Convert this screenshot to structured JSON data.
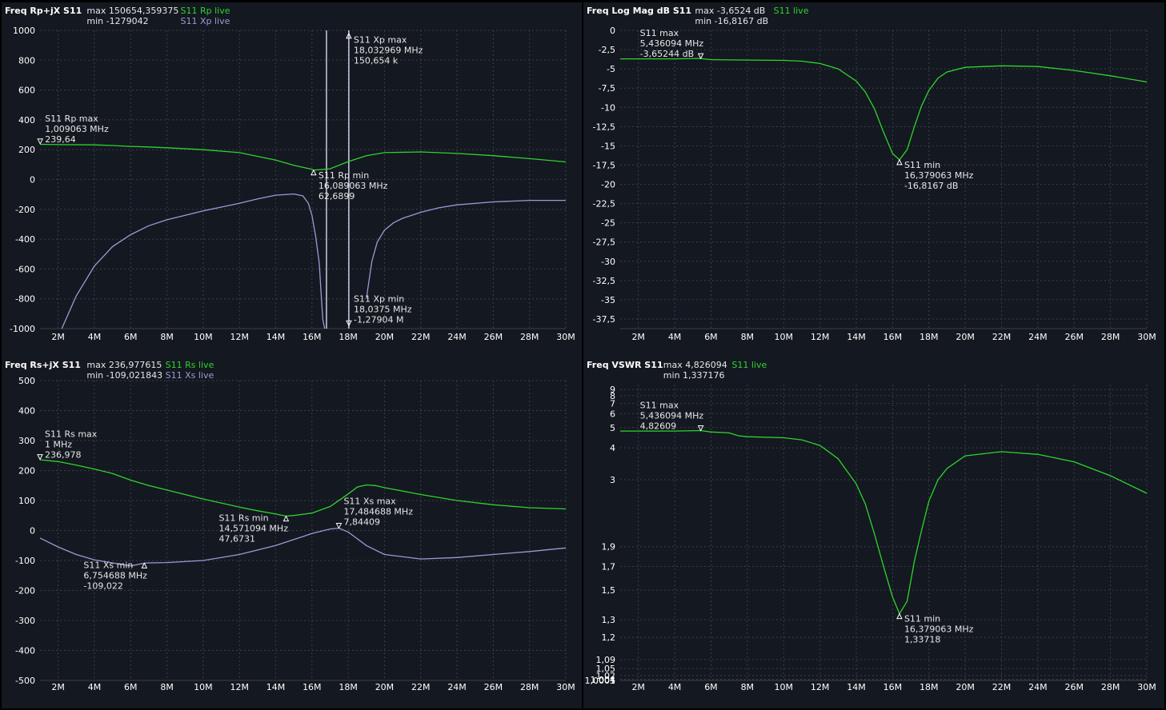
{
  "chart_data": [
    {
      "type": "line",
      "title": "Freq Rp+jX S11",
      "stats": {
        "max": "max 150654,359375",
        "min": "min -1279042"
      },
      "legend": [
        "S11 Rp live",
        "S11 Xp live"
      ],
      "x_ticks": [
        "2M",
        "4M",
        "6M",
        "8M",
        "10M",
        "12M",
        "14M",
        "16M",
        "18M",
        "20M",
        "22M",
        "24M",
        "26M",
        "28M",
        "30M"
      ],
      "y_ticks": [
        "1000",
        "800",
        "600",
        "400",
        "200",
        "0",
        "-200",
        "-400",
        "-600",
        "-800",
        "-1000"
      ],
      "xlim": [
        1,
        30
      ],
      "ylim": [
        -1000,
        1000
      ],
      "series": [
        {
          "name": "S11 Rp live",
          "color": "#2ed42e",
          "x": [
            1,
            2,
            4,
            5,
            6,
            7,
            8,
            10,
            12,
            14,
            15,
            16,
            16.09,
            17,
            18,
            19,
            20,
            22,
            24,
            26,
            28,
            30
          ],
          "y": [
            236,
            234,
            232,
            228,
            222,
            218,
            213,
            200,
            180,
            130,
            95,
            68,
            63,
            72,
            120,
            160,
            180,
            185,
            175,
            160,
            140,
            118
          ]
        },
        {
          "name": "S11 Xp live",
          "color": "#9b9bd6",
          "x": [
            2.2,
            3,
            4,
            5,
            6,
            7,
            8,
            10,
            12,
            13,
            14,
            15,
            15.5,
            15.8,
            16,
            16.2,
            16.4,
            16.5,
            16.6,
            16.7
          ],
          "y": [
            -1000,
            -780,
            -580,
            -450,
            -370,
            -310,
            -270,
            -210,
            -160,
            -130,
            -105,
            -97,
            -110,
            -160,
            -240,
            -380,
            -560,
            -760,
            -940,
            -1000
          ]
        },
        {
          "name": "S11 Xp live",
          "color": "#9b9bd6",
          "x": [
            19,
            19.3,
            19.6,
            20,
            20.5,
            21,
            22,
            23,
            24,
            26,
            28,
            30
          ],
          "y": [
            -800,
            -550,
            -420,
            -340,
            -290,
            -260,
            -220,
            -190,
            -170,
            -150,
            -140,
            -140
          ]
        }
      ],
      "markers": [
        {
          "x": 1.009063,
          "y": 239.64,
          "dir": "down",
          "lines": [
            "S11 Rp max",
            "1,009063 MHz",
            "239,64"
          ],
          "tdx": 6,
          "tdy": -28
        },
        {
          "x": 16.089063,
          "y": 62.6899,
          "dir": "up",
          "lines": [
            "S11 Rp min",
            "16,089063 MHz",
            "62,6899"
          ],
          "tdx": 6,
          "tdy": 10
        },
        {
          "x": 18.032969,
          "y": 980,
          "dir": "up",
          "lines": [
            "S11 Xp max",
            "18,032969 MHz",
            "150,654 k"
          ],
          "tdx": 6,
          "tdy": 12
        },
        {
          "x": 18.0375,
          "y": -980,
          "dir": "down",
          "lines": [
            "S11 Xp min",
            "18,0375 MHz",
            "-1,27904 M"
          ],
          "tdx": 6,
          "tdy": -30
        }
      ],
      "vlines": [
        16.8,
        18.032969
      ]
    },
    {
      "type": "line",
      "title": "Freq Log Mag dB S11",
      "stats": {
        "max": "max -3,6524 dB",
        "min": "min -16,8167 dB"
      },
      "legend": [
        "S11 live"
      ],
      "x_ticks": [
        "2M",
        "4M",
        "6M",
        "8M",
        "10M",
        "12M",
        "14M",
        "16M",
        "18M",
        "20M",
        "22M",
        "24M",
        "26M",
        "28M",
        "30M"
      ],
      "y_ticks": [
        "0",
        "-2,5",
        "-5",
        "-7,5",
        "-10",
        "-12,5",
        "-15",
        "-17,5",
        "-20",
        "-22,5",
        "-25",
        "-27,5",
        "-30",
        "-32,5",
        "-35",
        "-37,5"
      ],
      "xlim": [
        1,
        30
      ],
      "ylim": [
        -38.75,
        0
      ],
      "series": [
        {
          "name": "S11 live",
          "color": "#2ed42e",
          "x": [
            1,
            2,
            4,
            5.4,
            6,
            8,
            10,
            11,
            12,
            13,
            14,
            14.5,
            15,
            15.5,
            16,
            16.38,
            16.8,
            17.2,
            17.6,
            18,
            18.5,
            19,
            20,
            22,
            24,
            26,
            28,
            30
          ],
          "y": [
            -3.7,
            -3.7,
            -3.7,
            -3.65,
            -3.8,
            -3.85,
            -3.9,
            -4.0,
            -4.3,
            -5.0,
            -6.6,
            -8.0,
            -10.2,
            -13.2,
            -16.0,
            -16.82,
            -15.5,
            -12.5,
            -9.8,
            -7.8,
            -6.2,
            -5.4,
            -4.8,
            -4.6,
            -4.7,
            -5.2,
            -5.9,
            -6.7
          ]
        }
      ],
      "markers": [
        {
          "x": 5.436094,
          "y": -3.65244,
          "dir": "down",
          "lines": [
            "S11 max",
            "5,436094 MHz",
            "-3,65244 dB"
          ],
          "tdx": -76,
          "tdy": -28
        },
        {
          "x": 16.379063,
          "y": -16.8167,
          "dir": "up",
          "lines": [
            "S11 min",
            "16,379063 MHz",
            "-16,8167 dB"
          ],
          "tdx": 6,
          "tdy": 10
        }
      ],
      "vlines": []
    },
    {
      "type": "line",
      "title": "Freq Rs+jX S11",
      "stats": {
        "max": "max 236,977615",
        "min": "min -109,021843"
      },
      "legend": [
        "S11 Rs live",
        "S11 Xs live"
      ],
      "x_ticks": [
        "2M",
        "4M",
        "6M",
        "8M",
        "10M",
        "12M",
        "14M",
        "16M",
        "18M",
        "20M",
        "22M",
        "24M",
        "26M",
        "28M",
        "30M"
      ],
      "y_ticks": [
        "500",
        "400",
        "300",
        "200",
        "100",
        "0",
        "-100",
        "-200",
        "-300",
        "-400",
        "-500"
      ],
      "xlim": [
        1,
        30
      ],
      "ylim": [
        -500,
        500
      ],
      "series": [
        {
          "name": "S11 Rs live",
          "color": "#2ed42e",
          "x": [
            1,
            2,
            3,
            4,
            5,
            6,
            7,
            8,
            10,
            12,
            13,
            14,
            14.57,
            15,
            16,
            17,
            18,
            18.5,
            19,
            19.5,
            20,
            22,
            24,
            26,
            28,
            30
          ],
          "y": [
            236,
            230,
            218,
            205,
            190,
            168,
            150,
            135,
            105,
            78,
            66,
            55,
            48,
            50,
            58,
            80,
            122,
            145,
            152,
            150,
            143,
            120,
            100,
            86,
            76,
            72
          ]
        },
        {
          "name": "S11 Xs live",
          "color": "#9b9bd6",
          "x": [
            1,
            2,
            3,
            4,
            5,
            6,
            6.75,
            7,
            8,
            10,
            12,
            14,
            15,
            16,
            17,
            17.48,
            18,
            19,
            20,
            22,
            24,
            26,
            28,
            30
          ],
          "y": [
            -25,
            -55,
            -80,
            -98,
            -108,
            -118,
            -109,
            -108,
            -107,
            -100,
            -80,
            -50,
            -30,
            -10,
            5,
            8,
            -5,
            -50,
            -80,
            -95,
            -90,
            -80,
            -70,
            -58
          ]
        }
      ],
      "markers": [
        {
          "x": 1.0,
          "y": 236.978,
          "dir": "down",
          "lines": [
            "S11 Rs max",
            "1 MHz",
            "236,978"
          ],
          "tdx": 6,
          "tdy": -28
        },
        {
          "x": 14.571094,
          "y": 47.6731,
          "dir": "up",
          "lines": [
            "S11 Rs min",
            "14,571094 MHz",
            "47,6731"
          ],
          "tdx": -84,
          "tdy": 6
        },
        {
          "x": 17.484688,
          "y": 7.84409,
          "dir": "down",
          "lines": [
            "S11 Xs max",
            "17,484688 MHz",
            "7,84409"
          ],
          "tdx": 6,
          "tdy": -30
        },
        {
          "x": 6.754688,
          "y": -109.022,
          "dir": "up",
          "lines": [
            "S11 Xs min",
            "6,754688 MHz",
            "-109,022"
          ],
          "tdx": -76,
          "tdy": 6
        }
      ],
      "vlines": []
    },
    {
      "type": "line",
      "title": "Freq VSWR S11",
      "stats": {
        "max": "max 4,826094",
        "min": "min 1,337176"
      },
      "legend": [
        "S11 live"
      ],
      "scale": "vswr",
      "x_ticks": [
        "2M",
        "4M",
        "6M",
        "8M",
        "10M",
        "12M",
        "14M",
        "16M",
        "18M",
        "20M",
        "22M",
        "24M",
        "26M",
        "28M",
        "30M"
      ],
      "y_ticks": [
        "9",
        "8",
        "7",
        "6",
        "5",
        "4",
        "3",
        "1,9",
        "1,7",
        "1,5",
        "1,3",
        "1,2",
        "1,09",
        "1,05",
        "1,02",
        "1,004",
        "1,0005",
        "1"
      ],
      "y_tick_values": [
        9,
        8,
        7,
        6,
        5,
        4,
        3,
        1.9,
        1.7,
        1.5,
        1.3,
        1.2,
        1.09,
        1.05,
        1.02,
        1.004,
        1.0005,
        1
      ],
      "xlim": [
        1,
        30
      ],
      "ylim": [
        1,
        10
      ],
      "series": [
        {
          "name": "S11 live",
          "color": "#2ed42e",
          "x": [
            1,
            2,
            4,
            5.44,
            6,
            7,
            7.5,
            8,
            10,
            11,
            12,
            13,
            14,
            14.5,
            15,
            15.5,
            16,
            16.38,
            16.8,
            17.2,
            17.6,
            18,
            18.5,
            19,
            20,
            22,
            24,
            26,
            28,
            30
          ],
          "y": [
            4.8,
            4.8,
            4.8,
            4.83,
            4.75,
            4.7,
            4.55,
            4.5,
            4.45,
            4.35,
            4.1,
            3.6,
            2.9,
            2.5,
            2.05,
            1.7,
            1.45,
            1.337,
            1.42,
            1.75,
            2.1,
            2.55,
            3.0,
            3.3,
            3.7,
            3.85,
            3.75,
            3.5,
            3.1,
            2.7
          ]
        }
      ],
      "markers": [
        {
          "x": 5.436094,
          "y": 4.82609,
          "dir": "down",
          "lines": [
            "S11 max",
            "5,436094 MHz",
            "4,82609"
          ],
          "tdx": -76,
          "tdy": -28
        },
        {
          "x": 16.379063,
          "y": 1.33718,
          "dir": "up",
          "lines": [
            "S11 min",
            "16,379063 MHz",
            "1,33718"
          ],
          "tdx": 6,
          "tdy": 10
        }
      ],
      "vlines": []
    }
  ],
  "colors": {
    "background": "#141820",
    "grid": "#3a3f49",
    "text": "#e6e6e6",
    "axis_text": "#ffffff"
  }
}
